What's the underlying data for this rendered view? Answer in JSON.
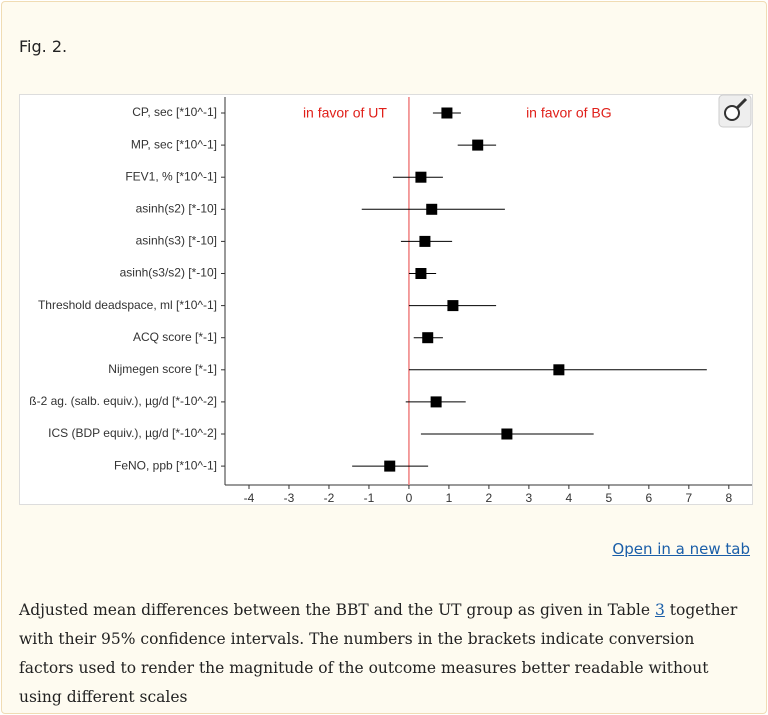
{
  "figure_label": "Fig. 2.",
  "chart_data": {
    "type": "forest",
    "categories": [
      "CP, sec [*10^-1]",
      "MP, sec [*10^-1]",
      "FEV1, % [*10^-1]",
      "asinh(s2) [*-10]",
      "asinh(s3) [*-10]",
      "asinh(s3/s2) [*-10]",
      "Threshold deadspace, ml [*10^-1]",
      "ACQ score [*-1]",
      "Nijmegen score [*-1]",
      "ß-2 ag. (salb. equiv.), µg/d [*-10^-2]",
      "ICS (BDP equiv.), µg/d [*-10^-2]",
      "FeNO, ppb [*10^-1]"
    ],
    "values": [
      0.95,
      1.72,
      0.3,
      0.57,
      0.4,
      0.3,
      1.1,
      0.47,
      3.75,
      0.68,
      2.45,
      -0.48
    ],
    "lower": [
      0.6,
      1.22,
      -0.4,
      -1.18,
      -0.2,
      0,
      0,
      0.12,
      0,
      -0.08,
      0.3,
      -1.42
    ],
    "upper": [
      1.3,
      2.18,
      0.85,
      2.4,
      1.08,
      0.68,
      2.18,
      0.85,
      7.45,
      1.42,
      4.62,
      0.48
    ],
    "xlim": [
      -4.6,
      8.58
    ],
    "xticks": [
      -4,
      -3,
      -2,
      -1,
      0,
      1,
      2,
      3,
      4,
      5,
      6,
      7,
      8
    ],
    "reference_line": 0,
    "reference_color": "#f08080",
    "color": "#000000",
    "annotations": [
      {
        "text": "in favor of UT",
        "x": -1.6,
        "color": "#e0201a"
      },
      {
        "text": "in favor of BG",
        "x": 4.0,
        "color": "#e0201a"
      }
    ]
  },
  "link_text": "Open in a new tab",
  "caption": {
    "before": "Adjusted mean differences between the BBT and the UT group as given in Table",
    "link": "3",
    "after": "together with their 95% confidence intervals. The numbers in the brackets indicate conversion factors used to render the magnitude of the outcome measures better readable without using different scales"
  }
}
